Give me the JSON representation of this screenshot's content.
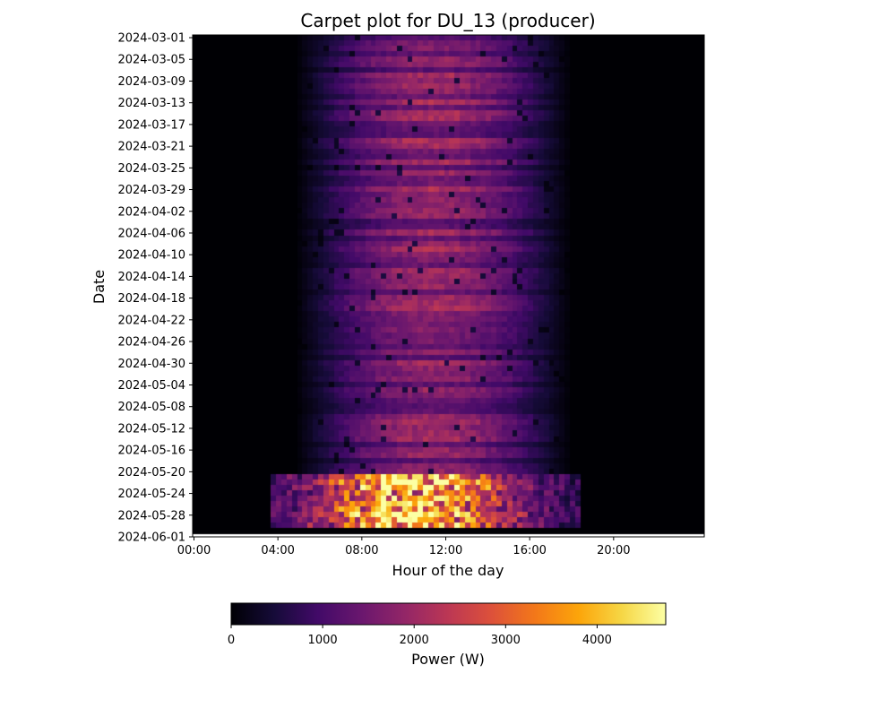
{
  "chart_data": {
    "type": "heatmap",
    "title": "Carpet plot for DU_13 (producer)",
    "xlabel": "Hour of the day",
    "ylabel": "Date",
    "x_tick_labels": [
      "00:00",
      "04:00",
      "08:00",
      "12:00",
      "16:00",
      "20:00"
    ],
    "x_tick_hours": [
      0,
      4,
      8,
      12,
      16,
      20
    ],
    "x_range_hours": [
      0,
      24
    ],
    "y_tick_labels": [
      "2024-03-01",
      "2024-03-05",
      "2024-03-09",
      "2024-03-13",
      "2024-03-17",
      "2024-03-21",
      "2024-03-25",
      "2024-03-29",
      "2024-04-02",
      "2024-04-06",
      "2024-04-10",
      "2024-04-14",
      "2024-04-18",
      "2024-04-22",
      "2024-04-26",
      "2024-04-30",
      "2024-05-04",
      "2024-05-08",
      "2024-05-12",
      "2024-05-16",
      "2024-05-20",
      "2024-05-24",
      "2024-05-28",
      "2024-06-01"
    ],
    "date_range": [
      "2024-03-01",
      "2024-06-01"
    ],
    "interval_minutes": 15,
    "colorbar": {
      "label": "Power (W)",
      "tick_labels": [
        "0",
        "1000",
        "2000",
        "3000",
        "4000"
      ],
      "tick_values": [
        0,
        1000,
        2000,
        3000,
        4000
      ],
      "range": [
        0,
        4750
      ],
      "colormap": "inferno"
    },
    "profile": {
      "description_free": true,
      "normal_period": {
        "dates": [
          "2024-03-01",
          "2024-05-21"
        ],
        "start_hour": 5.0,
        "end_hour": 17.5,
        "peak_w": 2200
      },
      "high_period": {
        "dates": [
          "2024-05-21",
          "2024-05-31"
        ],
        "start_hour": 3.75,
        "end_hour": 18.5,
        "peak_w": 4700
      }
    },
    "last_row_no_data": "2024-05-31"
  }
}
